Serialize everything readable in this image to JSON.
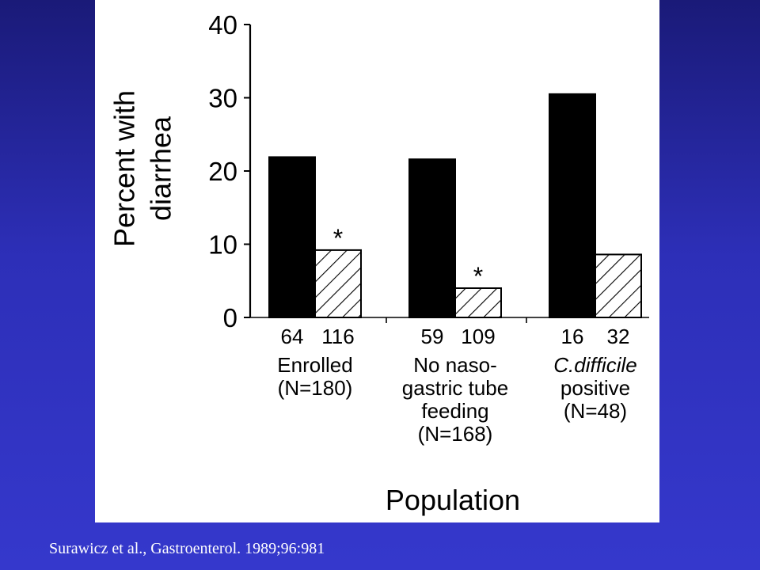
{
  "chart_data": {
    "type": "bar",
    "ylabel_lines": [
      "Percent with",
      "diarrhea"
    ],
    "xlabel": "Population",
    "ylim": [
      0,
      40
    ],
    "yticks": [
      0,
      10,
      20,
      30,
      40
    ],
    "grid": false,
    "groups": [
      {
        "label_lines": [
          "Enrolled",
          "(N=180)"
        ],
        "italic_first_line": false,
        "bars": [
          {
            "value": 21.9,
            "n": "64",
            "style": "solid",
            "marker": ""
          },
          {
            "value": 9.2,
            "n": "116",
            "style": "hatched",
            "marker": "*"
          }
        ]
      },
      {
        "label_lines": [
          "No naso-",
          "gastric tube",
          "feeding",
          "(N=168)"
        ],
        "italic_first_line": false,
        "bars": [
          {
            "value": 21.6,
            "n": "59",
            "style": "solid",
            "marker": ""
          },
          {
            "value": 4.0,
            "n": "109",
            "style": "hatched",
            "marker": "*"
          }
        ]
      },
      {
        "label_lines": [
          "C.difficile",
          "positive",
          "(N=48)"
        ],
        "italic_first_line": true,
        "bars": [
          {
            "value": 30.5,
            "n": "16",
            "style": "solid",
            "marker": ""
          },
          {
            "value": 8.6,
            "n": "32",
            "style": "hatched",
            "marker": ""
          }
        ]
      }
    ]
  },
  "citation": "Surawicz et al., Gastroenterol. 1989;96:981",
  "colors": {
    "background_top": "#1a1a78",
    "background_bottom": "#3538cc",
    "panel": "#ffffff",
    "ink": "#000000",
    "citation_text": "#ffffff"
  }
}
